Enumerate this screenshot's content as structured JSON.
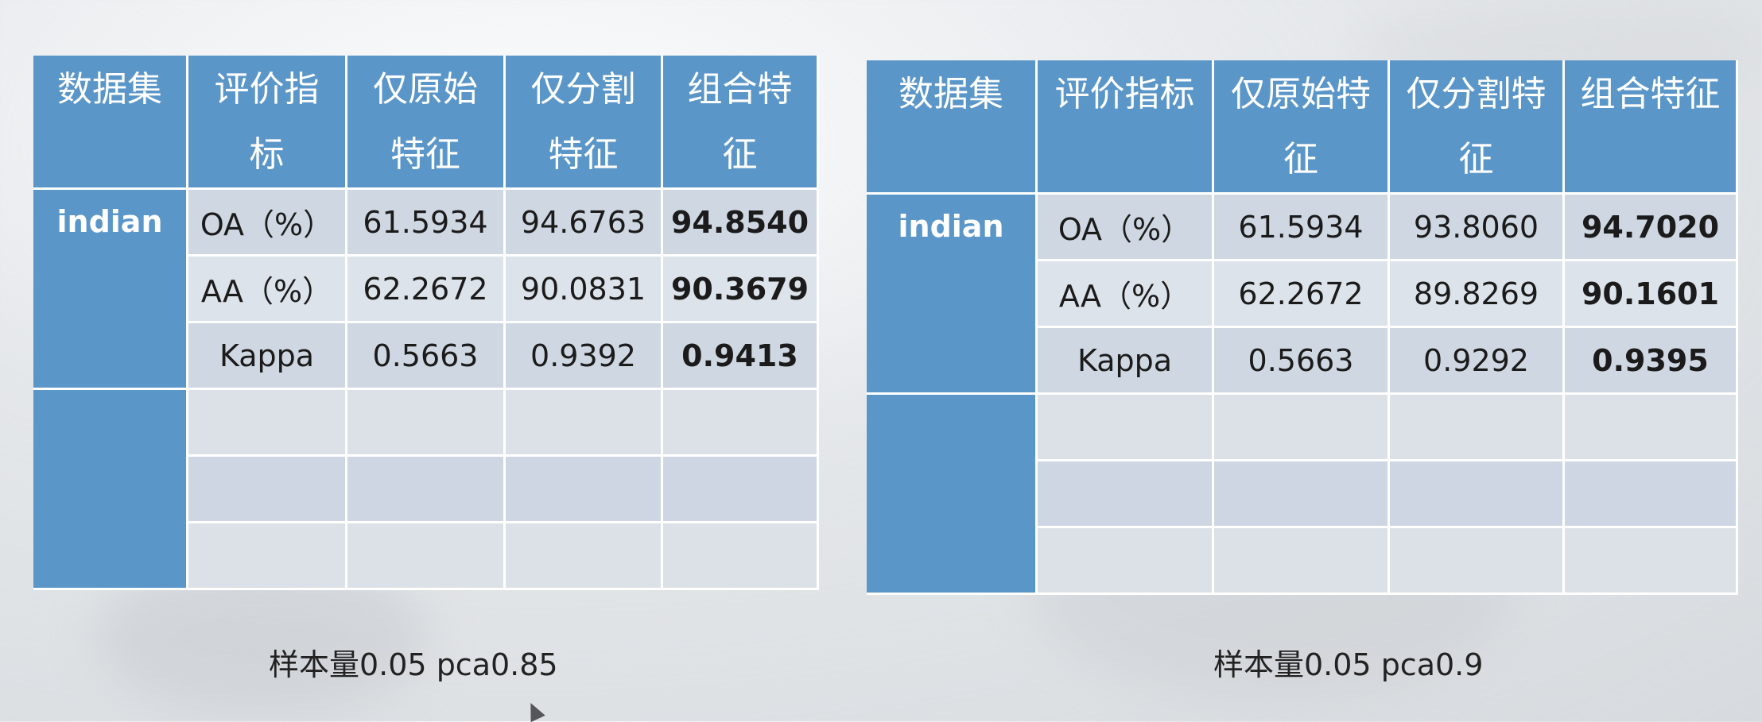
{
  "tables": [
    {
      "headers": [
        "数据集",
        "评价指\n标",
        "仅原始\n特征",
        "仅分割\n特征",
        "组合特\n征"
      ],
      "dataset": "indian",
      "rows": [
        {
          "metric": "OA（%）",
          "orig": "61.5934",
          "seg": "94.6763",
          "comb": "94.8540"
        },
        {
          "metric": "AA（%）",
          "orig": "62.2672",
          "seg": "90.0831",
          "comb": "90.3679"
        },
        {
          "metric": "Kappa",
          "orig": "0.5663",
          "seg": "0.9392",
          "comb": "0.9413"
        }
      ],
      "caption": "样本量0.05 pca0.85"
    },
    {
      "headers": [
        "数据集",
        "评价指标",
        "仅原始特\n征",
        "仅分割特\n征",
        "组合特征"
      ],
      "dataset": "indian",
      "rows": [
        {
          "metric": "OA（%）",
          "orig": "61.5934",
          "seg": "93.8060",
          "comb": "94.7020"
        },
        {
          "metric": "AA（%）",
          "orig": "62.2672",
          "seg": "89.8269",
          "comb": "90.1601"
        },
        {
          "metric": "Kappa",
          "orig": "0.5663",
          "seg": "0.9292",
          "comb": "0.9395"
        }
      ],
      "caption": "样本量0.05 pca0.9"
    }
  ]
}
